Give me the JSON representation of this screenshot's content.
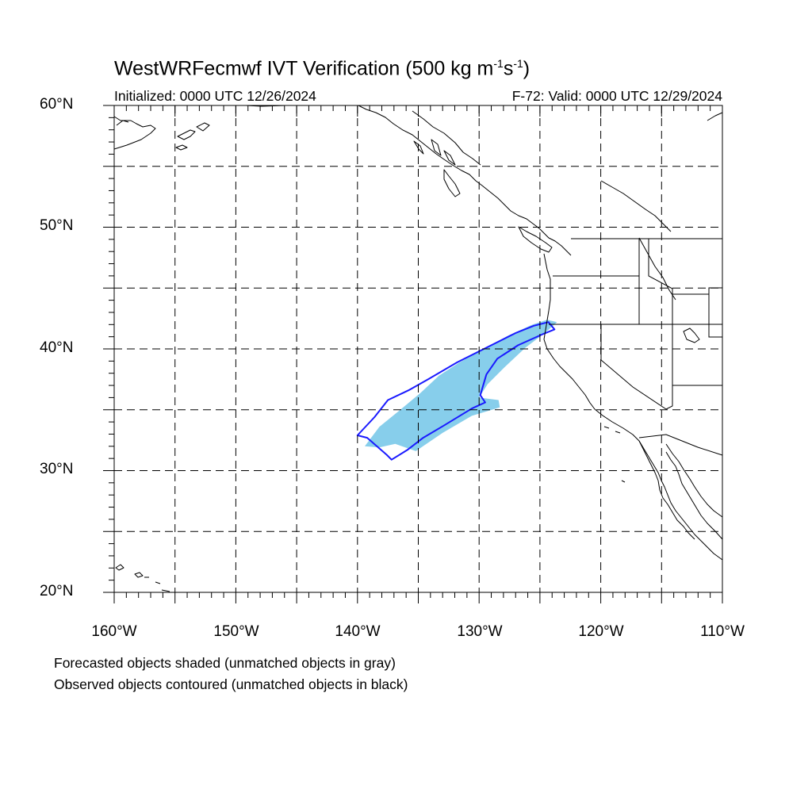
{
  "title": {
    "main_prefix": "WestWRFecmwf IVT Verification (500 kg m",
    "exp1": "-1",
    "mid": "s",
    "exp2": "-1",
    "suffix": ")"
  },
  "subtitle": {
    "initialized": "Initialized: 0000 UTC 12/26/2024",
    "valid": "F-72: Valid: 0000 UTC 12/29/2024"
  },
  "axes": {
    "lat_labels": [
      "60°N",
      "50°N",
      "40°N",
      "30°N",
      "20°N"
    ],
    "lon_labels": [
      "160°W",
      "150°W",
      "140°W",
      "130°W",
      "120°W",
      "110°W"
    ],
    "lat_range": [
      20,
      60
    ],
    "lon_range": [
      -160,
      -110
    ],
    "grid_step_deg": 5,
    "grid": "dashed"
  },
  "legend_notes": {
    "line1": "Forecasted objects shaded (unmatched objects in gray)",
    "line2": "Observed objects contoured (unmatched objects in black)"
  },
  "colors": {
    "forecast_fill": "#87ceeb",
    "observed_contour": "#1a1aff",
    "coastline": "#000000",
    "grid": "#000000"
  },
  "chart_data": {
    "type": "map",
    "projection": "cylindrical equidistant",
    "forecast_object": {
      "matched": true,
      "lon_lat": [
        [
          -139.4,
          32.0
        ],
        [
          -138.2,
          33.6
        ],
        [
          -136.6,
          34.9
        ],
        [
          -134.8,
          36.4
        ],
        [
          -133.3,
          37.8
        ],
        [
          -131.6,
          38.9
        ],
        [
          -129.8,
          39.9
        ],
        [
          -127.6,
          41.1
        ],
        [
          -125.6,
          42.0
        ],
        [
          -124.4,
          42.4
        ],
        [
          -123.6,
          42.2
        ],
        [
          -124.6,
          41.3
        ],
        [
          -126.2,
          40.1
        ],
        [
          -127.9,
          38.5
        ],
        [
          -129.3,
          37.1
        ],
        [
          -130.0,
          36.0
        ],
        [
          -128.4,
          35.8
        ],
        [
          -128.3,
          35.2
        ],
        [
          -130.6,
          34.5
        ],
        [
          -133.0,
          33.1
        ],
        [
          -135.2,
          31.6
        ],
        [
          -136.9,
          32.2
        ],
        [
          -138.2,
          31.9
        ]
      ]
    },
    "observed_object": {
      "matched": true,
      "lon_lat": [
        [
          -140.0,
          32.9
        ],
        [
          -138.6,
          34.4
        ],
        [
          -137.5,
          35.8
        ],
        [
          -135.8,
          36.6
        ],
        [
          -134.2,
          37.5
        ],
        [
          -131.8,
          38.9
        ],
        [
          -129.0,
          40.3
        ],
        [
          -127.0,
          41.3
        ],
        [
          -125.5,
          41.9
        ],
        [
          -124.3,
          42.2
        ],
        [
          -123.8,
          41.6
        ],
        [
          -124.8,
          41.2
        ],
        [
          -126.8,
          40.3
        ],
        [
          -128.5,
          39.2
        ],
        [
          -129.4,
          37.9
        ],
        [
          -129.9,
          36.2
        ],
        [
          -129.5,
          35.6
        ],
        [
          -130.6,
          35.1
        ],
        [
          -132.9,
          33.7
        ],
        [
          -134.6,
          32.7
        ],
        [
          -135.9,
          31.7
        ],
        [
          -137.2,
          30.9
        ],
        [
          -137.6,
          31.3
        ],
        [
          -139.2,
          32.7
        ]
      ]
    }
  }
}
